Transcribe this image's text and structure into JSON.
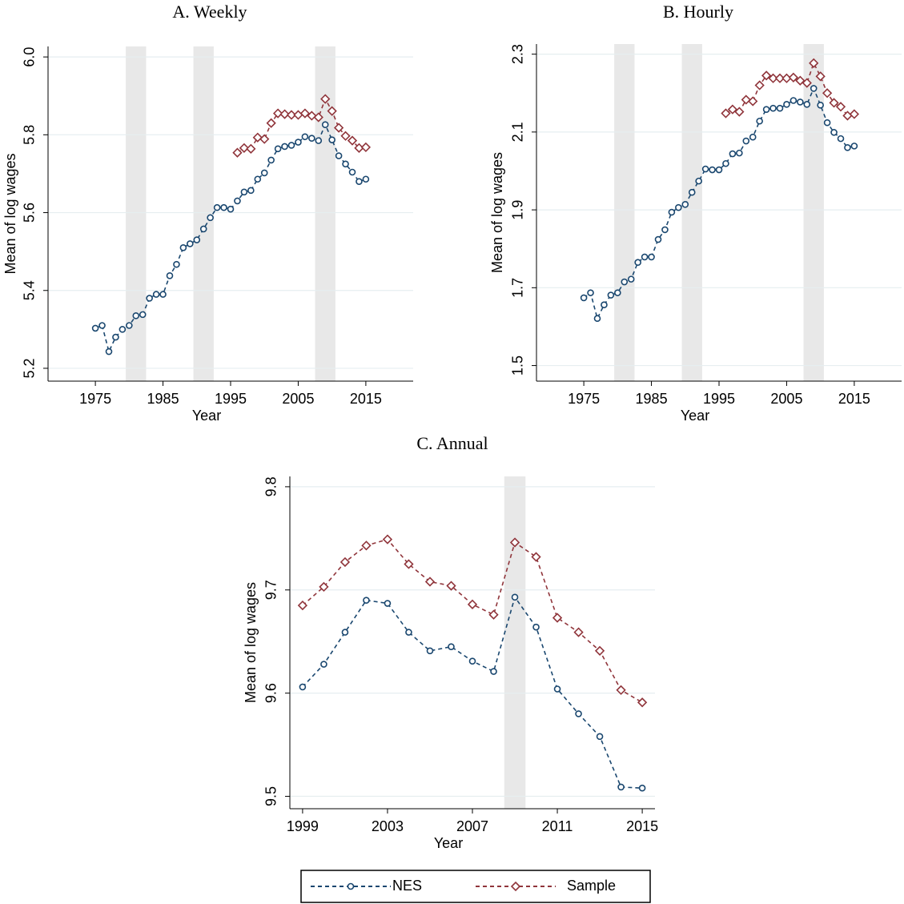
{
  "chart_data": [
    {
      "type": "line",
      "title": "A. Weekly",
      "xlabel": "Year",
      "ylabel": "Mean of log wages",
      "x": [
        1975,
        1976,
        1977,
        1978,
        1979,
        1980,
        1981,
        1982,
        1983,
        1984,
        1985,
        1986,
        1987,
        1988,
        1989,
        1990,
        1991,
        1992,
        1993,
        1994,
        1995,
        1996,
        1997,
        1998,
        1999,
        2000,
        2001,
        2002,
        2003,
        2004,
        2005,
        2006,
        2007,
        2008,
        2009,
        2010,
        2011,
        2012,
        2013,
        2014,
        2015
      ],
      "series": [
        {
          "color": "#1a476f",
          "marker": "circle",
          "values": [
            5.303,
            5.31,
            5.243,
            5.28,
            5.3,
            5.31,
            5.335,
            5.338,
            5.38,
            5.39,
            5.39,
            5.438,
            5.467,
            5.51,
            5.52,
            5.53,
            5.558,
            5.587,
            5.613,
            5.613,
            5.609,
            5.63,
            5.653,
            5.657,
            5.686,
            5.702,
            5.735,
            5.764,
            5.77,
            5.773,
            5.781,
            5.795,
            5.791,
            5.785,
            5.826,
            5.787,
            5.746,
            5.725,
            5.704,
            5.68,
            5.686
          ]
        },
        {
          "color": "#90353b",
          "marker": "diamond",
          "values": [
            null,
            null,
            null,
            null,
            null,
            null,
            null,
            null,
            null,
            null,
            null,
            null,
            null,
            null,
            null,
            null,
            null,
            null,
            null,
            null,
            null,
            5.754,
            5.766,
            5.764,
            5.793,
            5.789,
            5.83,
            5.855,
            5.853,
            5.851,
            5.851,
            5.855,
            5.849,
            5.845,
            5.892,
            5.861,
            5.818,
            5.797,
            5.785,
            5.766,
            5.768
          ]
        }
      ],
      "shaded": [
        [
          1979.5,
          1982.5
        ],
        [
          1989.5,
          1992.5
        ],
        [
          2007.5,
          2010.5
        ]
      ],
      "xlim": [
        1968,
        2022
      ],
      "xticks": [
        1975,
        1985,
        1995,
        2005,
        2015
      ],
      "ylim": [
        5.167,
        6.027
      ],
      "yticks": [
        5.2,
        5.4,
        5.6,
        5.8,
        {
          "value": 6,
          "label": "6.0"
        }
      ],
      "grid": true
    },
    {
      "type": "line",
      "title": "B. Hourly",
      "xlabel": "Year",
      "ylabel": "Mean of log wages",
      "x": [
        1975,
        1976,
        1977,
        1978,
        1979,
        1980,
        1981,
        1982,
        1983,
        1984,
        1985,
        1986,
        1987,
        1988,
        1989,
        1990,
        1991,
        1992,
        1993,
        1994,
        1995,
        1996,
        1997,
        1998,
        1999,
        2000,
        2001,
        2002,
        2003,
        2004,
        2005,
        2006,
        2007,
        2008,
        2009,
        2010,
        2011,
        2012,
        2013,
        2014,
        2015
      ],
      "series": [
        {
          "color": "#1a476f",
          "marker": "circle",
          "values": [
            1.674,
            1.687,
            1.621,
            1.656,
            1.681,
            1.687,
            1.715,
            1.722,
            1.765,
            1.779,
            1.779,
            1.824,
            1.849,
            1.894,
            1.906,
            1.914,
            1.945,
            1.974,
            2.005,
            2.003,
            2.003,
            2.019,
            2.044,
            2.046,
            2.077,
            2.087,
            2.128,
            2.158,
            2.161,
            2.161,
            2.171,
            2.181,
            2.177,
            2.171,
            2.212,
            2.169,
            2.124,
            2.099,
            2.083,
            2.06,
            2.064
          ]
        },
        {
          "color": "#90353b",
          "marker": "diamond",
          "values": [
            null,
            null,
            null,
            null,
            null,
            null,
            null,
            null,
            null,
            null,
            null,
            null,
            null,
            null,
            null,
            null,
            null,
            null,
            null,
            null,
            null,
            2.148,
            2.158,
            2.152,
            2.183,
            2.179,
            2.22,
            2.245,
            2.238,
            2.238,
            2.238,
            2.24,
            2.232,
            2.226,
            2.277,
            2.243,
            2.2,
            2.175,
            2.165,
            2.142,
            2.146
          ]
        }
      ],
      "shaded": [
        [
          1979.5,
          1982.5
        ],
        [
          1989.5,
          1992.5
        ],
        [
          2007.5,
          2010.5
        ]
      ],
      "xlim": [
        1968,
        2022
      ],
      "xticks": [
        1975,
        1985,
        1995,
        2005,
        2015
      ],
      "ylim": [
        1.46,
        2.326
      ],
      "yticks": [
        1.5,
        1.7,
        1.9,
        2.1,
        2.3
      ],
      "grid": true
    },
    {
      "type": "line",
      "title": "C. Annual",
      "xlabel": "Year",
      "ylabel": "Mean of log wages",
      "x": [
        1999,
        2000,
        2001,
        2002,
        2003,
        2004,
        2005,
        2006,
        2007,
        2008,
        2009,
        2010,
        2011,
        2012,
        2013,
        2014,
        2015
      ],
      "series": [
        {
          "name": "NES",
          "color": "#1a476f",
          "marker": "circle",
          "values": [
            9.606,
            9.628,
            9.659,
            9.69,
            9.687,
            9.659,
            9.641,
            9.645,
            9.631,
            9.621,
            9.693,
            9.664,
            9.604,
            9.58,
            9.558,
            9.509,
            9.508
          ]
        },
        {
          "name": "Sample",
          "color": "#90353b",
          "marker": "diamond",
          "values": [
            9.685,
            9.703,
            9.727,
            9.743,
            9.749,
            9.725,
            9.708,
            9.704,
            9.686,
            9.676,
            9.746,
            9.732,
            9.673,
            9.659,
            9.641,
            9.603,
            9.591
          ]
        }
      ],
      "shaded": [
        [
          2008.5,
          2009.5
        ]
      ],
      "xlim": [
        1998.4,
        2015.6
      ],
      "xticks": [
        1999,
        2003,
        2007,
        2011,
        2015
      ],
      "ylim": [
        9.488,
        9.81
      ],
      "yticks": [
        9.5,
        9.6,
        9.7,
        9.8
      ],
      "grid": true
    }
  ]
}
